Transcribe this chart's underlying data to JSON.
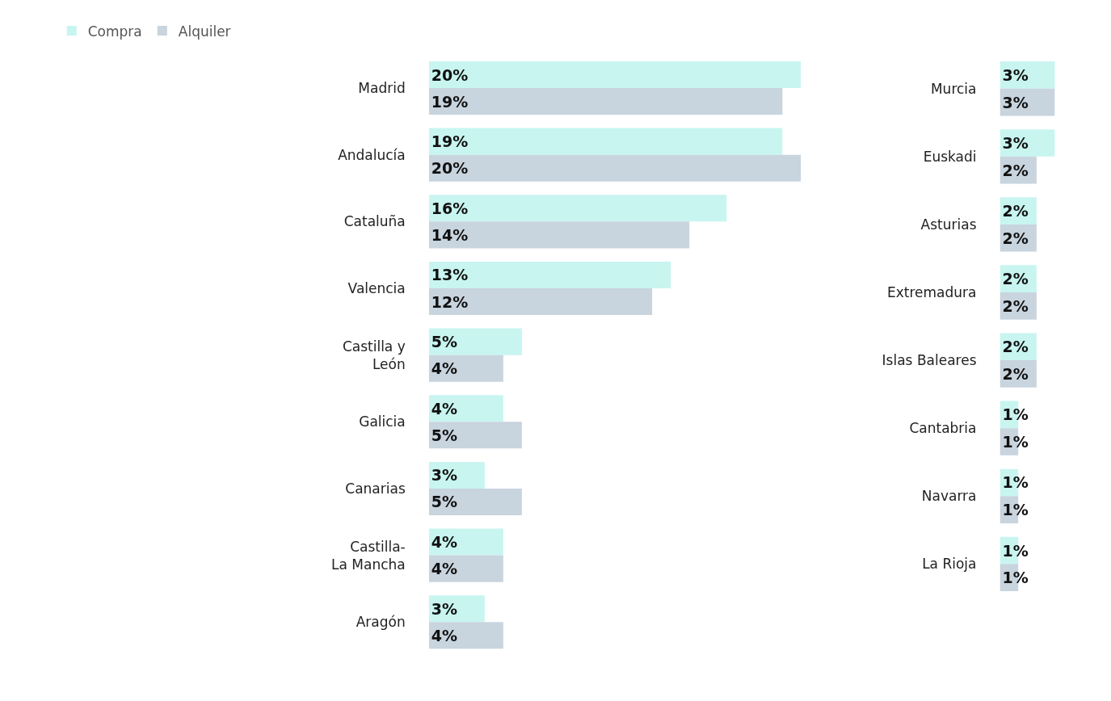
{
  "chart_data": [
    {
      "type": "bar",
      "orientation": "horizontal",
      "categories": [
        "Madrid",
        "Andalucía",
        "Cataluña",
        "Valencia",
        "Castilla y León",
        "Galicia",
        "Canarias",
        "Castilla-La Mancha",
        "Aragón"
      ],
      "series": [
        {
          "name": "Compra",
          "color": "#c8f5f0",
          "values": [
            20,
            19,
            16,
            13,
            5,
            4,
            3,
            4,
            3
          ],
          "value_labels": [
            "20%",
            "19%",
            "16%",
            "13%",
            "5%",
            "4%",
            "3%",
            "4%",
            "3%"
          ]
        },
        {
          "name": "Alquiler",
          "color": "#c8d4de",
          "values": [
            19,
            20,
            14,
            12,
            4,
            5,
            5,
            4,
            4
          ],
          "value_labels": [
            "19%",
            "20%",
            "14%",
            "12%",
            "4%",
            "5%",
            "5%",
            "4%",
            "4%"
          ]
        }
      ],
      "xlim": [
        0,
        20
      ],
      "tick_labels": "y",
      "legend": "top left"
    },
    {
      "type": "bar",
      "orientation": "horizontal",
      "categories": [
        "Murcia",
        "Euskadi",
        "Asturias",
        "Extremadura",
        "Islas Baleares",
        "Cantabria",
        "Navarra",
        "La Rioja"
      ],
      "series": [
        {
          "color": "#c8f5f0",
          "values": [
            3,
            3,
            2,
            2,
            2,
            1,
            1,
            1
          ],
          "value_labels": [
            "3%",
            "3%",
            "2%",
            "2%",
            "2%",
            "1%",
            "1%",
            "1%"
          ]
        },
        {
          "color": "#c8d4de",
          "values": [
            3,
            2,
            2,
            2,
            2,
            1,
            1,
            1
          ],
          "value_labels": [
            "3%",
            "2%",
            "2%",
            "2%",
            "2%",
            "1%",
            "1%",
            "1%"
          ]
        }
      ],
      "xlim": [
        0,
        3
      ],
      "tick_labels": "y",
      "legend": false
    }
  ]
}
